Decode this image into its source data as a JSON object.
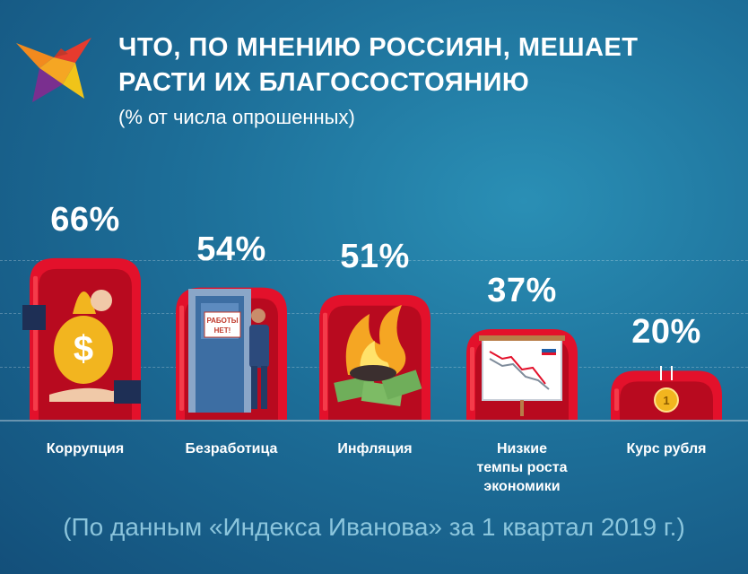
{
  "header": {
    "title_line1": "ЧТО, ПО МНЕНИЮ РОССИЯН, МЕШАЕТ",
    "title_line2": "РАСТИ ИХ БЛАГОСОСТОЯНИЮ",
    "subtitle": "(% от числа опрошенных)"
  },
  "icons": {
    "logo": "bird-logo-icon",
    "bar1": "money-bag-hand-icon",
    "bar2": "door-no-jobs-icon",
    "bar3": "burning-money-icon",
    "bar4": "falling-chart-board-icon",
    "bar5": "falling-ruble-coin-icon"
  },
  "sign_text": "РАБОТЫ НЕТ!",
  "chart_data": {
    "type": "bar",
    "categories": [
      "Коррупция",
      "Безработица",
      "Инфляция",
      "Низкие темпы роста экономики",
      "Курс рубля"
    ],
    "category_lines": [
      [
        "Коррупция"
      ],
      [
        "Безработица"
      ],
      [
        "Инфляция"
      ],
      [
        "Низкие",
        "темпы роста",
        "экономики"
      ],
      [
        "Курс рубля"
      ]
    ],
    "values": [
      66,
      54,
      51,
      37,
      20
    ],
    "value_labels": [
      "66%",
      "54%",
      "51%",
      "37%",
      "20%"
    ],
    "ylim": [
      0,
      100
    ],
    "grid": true
  },
  "colors": {
    "bar_fill": "#e3112b",
    "bar_shade": "#b80a1f",
    "bar_highlight": "#ff5a5f",
    "text": "#ffffff"
  },
  "footnote": "(По данным «Индекса Иванова» за 1 квартал 2019 г.)"
}
